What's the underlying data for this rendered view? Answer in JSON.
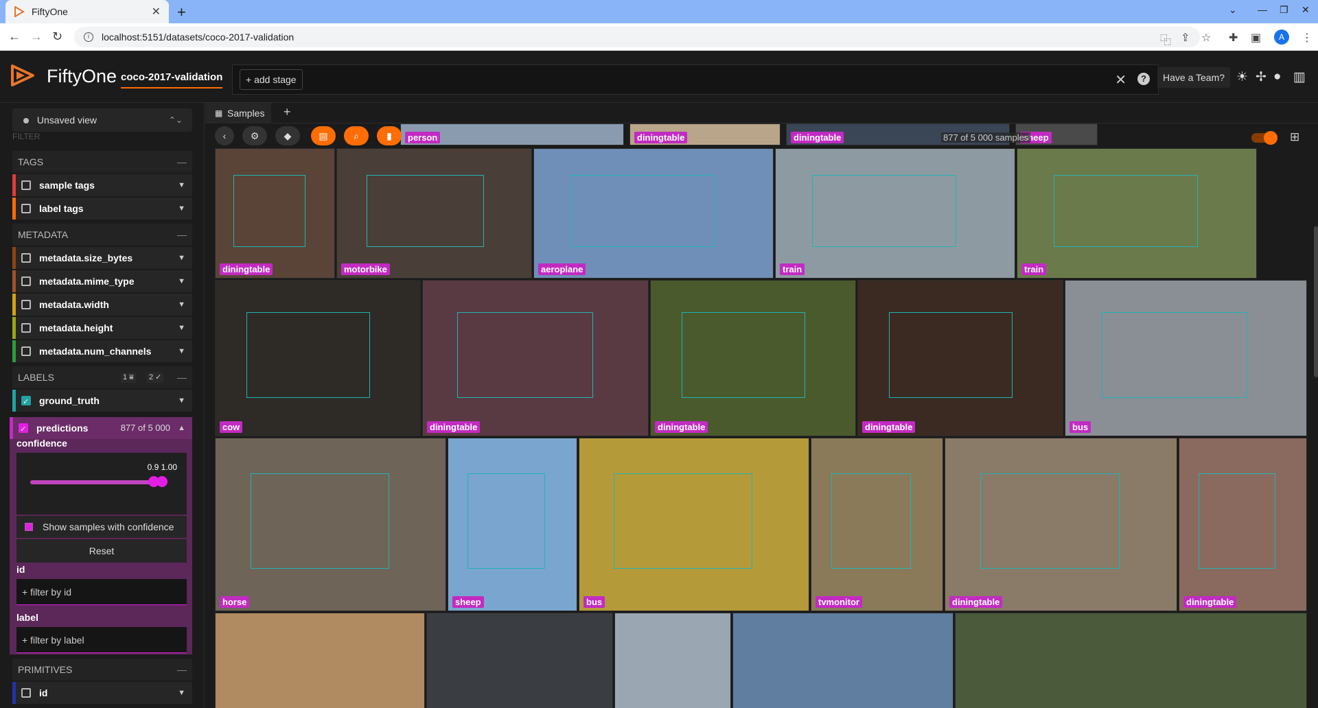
{
  "browser": {
    "tab_title": "FiftyOne",
    "url": "localhost:5151/datasets/coco-2017-validation",
    "profile_initial": "A"
  },
  "header": {
    "brand": "FiftyOne",
    "dataset_name": "coco-2017-validation",
    "add_stage": "+ add stage",
    "team_button": "Have a Team?",
    "icons": [
      "sun-icon",
      "slack-icon",
      "github-icon",
      "docs-icon"
    ]
  },
  "sidebar": {
    "view_selector": "Unsaved view",
    "filter_label": "FILTER",
    "groups": {
      "tags": "TAGS",
      "metadata": "METADATA",
      "labels": "LABELS",
      "primitives": "PRIMITIVES"
    },
    "labels_badges": [
      "1",
      "2"
    ],
    "tags_rows": [
      "sample tags",
      "label tags"
    ],
    "metadata_rows": [
      "metadata.size_bytes",
      "metadata.mime_type",
      "metadata.width",
      "metadata.height",
      "metadata.num_channels"
    ],
    "label_rows": {
      "ground_truth": "ground_truth",
      "predictions": "predictions",
      "predictions_count": "877 of 5 000"
    },
    "predictions_panel": {
      "confidence_label": "confidence",
      "slider_min": "0.9",
      "slider_max": "1.00",
      "show_samples": "Show samples with confidence",
      "reset": "Reset",
      "id_label": "id",
      "id_placeholder": "+ filter by id",
      "label_label": "label",
      "label_placeholder": "+ filter by label"
    },
    "primitives_rows": [
      "id"
    ]
  },
  "main": {
    "tab_label": "Samples",
    "sample_count": "877 of 5 000 samples",
    "tiles": [
      {
        "label": "diningtable",
        "color": "#5a4438"
      },
      {
        "label": "motorbike",
        "color": "#4a3f38"
      },
      {
        "label": "aeroplane",
        "color": "#6f8fb8"
      },
      {
        "label": "train",
        "color": "#8e9aa2"
      },
      {
        "label": "train",
        "color": "#6b7a4a"
      },
      {
        "label": "cow",
        "color": "#2e2a26"
      },
      {
        "label": "diningtable",
        "color": "#5a3a42"
      },
      {
        "label": "diningtable",
        "color": "#4b5a2c"
      },
      {
        "label": "diningtable",
        "color": "#3a2a22"
      },
      {
        "label": "bus",
        "color": "#8a8f96"
      },
      {
        "label": "horse",
        "color": "#6e6458"
      },
      {
        "label": "sheep",
        "color": "#7aa5cf"
      },
      {
        "label": "bus",
        "color": "#b59a3a"
      },
      {
        "label": "tvmonitor",
        "color": "#8a7a5a"
      },
      {
        "label": "diningtable",
        "color": "#8a7a68"
      },
      {
        "label": "diningtable",
        "color": "#8a6a5e"
      }
    ],
    "top_row_labels": [
      "person",
      "diningtable",
      "diningtable",
      "sheep"
    ]
  }
}
